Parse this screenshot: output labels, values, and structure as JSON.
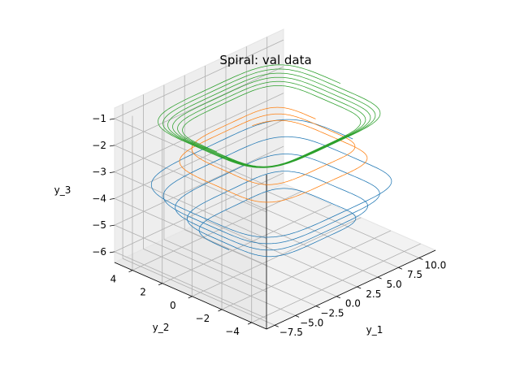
{
  "chart_data": {
    "type": "line3d",
    "title": "Spiral: val data",
    "xlabel": "y_1",
    "ylabel": "y_2",
    "zlabel": "y_3",
    "xlim": [
      -8.5,
      12
    ],
    "ylim": [
      -5,
      5.2
    ],
    "zlim": [
      -6.4,
      -0.6
    ],
    "x_ticks": [
      -7.5,
      -5.0,
      -2.5,
      0.0,
      2.5,
      5.0,
      7.5,
      10.0
    ],
    "y_ticks": [
      -4,
      -2,
      0,
      2,
      4
    ],
    "z_ticks": [
      -6,
      -5,
      -4,
      -3,
      -2,
      -1
    ],
    "x_tick_labels": [
      "−7.5",
      "−5.0",
      "−2.5",
      "0.0",
      "2.5",
      "5.0",
      "7.5",
      "10.0"
    ],
    "y_tick_labels": [
      "−4",
      "−2",
      "0",
      "2",
      "4"
    ],
    "z_tick_labels": [
      "−6",
      "−5",
      "−4",
      "−3",
      "−2",
      "−1"
    ],
    "grid": true,
    "series": [
      {
        "color": "#1f77b4",
        "z_start": -3.3,
        "z_end": -5.3,
        "turns": 4.5,
        "r_start": 9.5,
        "r_end": 5.5,
        "center": [
          1.5,
          0
        ]
      },
      {
        "color": "#ff7f0e",
        "z_start": -1.9,
        "z_end": -2.9,
        "turns": 2.2,
        "r_start": 5.5,
        "r_end": 7.5,
        "center": [
          1.0,
          0
        ]
      },
      {
        "color": "#2ca02c",
        "z_start": -1.0,
        "z_end": -1.4,
        "turns": 5.5,
        "r_start": 8.5,
        "r_end": 6.5,
        "center": [
          1.0,
          0
        ]
      }
    ]
  }
}
